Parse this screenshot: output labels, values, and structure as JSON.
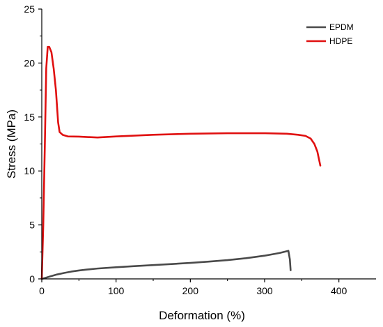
{
  "chart_data": {
    "type": "line",
    "xlabel": "Deformation (%)",
    "ylabel": "Stress (MPa)",
    "xlim": [
      0,
      450
    ],
    "ylim": [
      0,
      25
    ],
    "xticks": [
      0,
      100,
      200,
      300,
      400
    ],
    "yticks": [
      0,
      5,
      10,
      15,
      20,
      25
    ],
    "grid": false,
    "legend_position": "top-right",
    "series": [
      {
        "name": "EPDM",
        "color": "#4a4a4a",
        "points": [
          [
            0,
            0
          ],
          [
            5,
            0.1
          ],
          [
            10,
            0.2
          ],
          [
            20,
            0.4
          ],
          [
            30,
            0.55
          ],
          [
            40,
            0.68
          ],
          [
            50,
            0.78
          ],
          [
            60,
            0.86
          ],
          [
            75,
            0.96
          ],
          [
            100,
            1.08
          ],
          [
            125,
            1.18
          ],
          [
            150,
            1.28
          ],
          [
            175,
            1.38
          ],
          [
            200,
            1.48
          ],
          [
            225,
            1.6
          ],
          [
            250,
            1.74
          ],
          [
            275,
            1.92
          ],
          [
            300,
            2.15
          ],
          [
            320,
            2.4
          ],
          [
            332,
            2.6
          ],
          [
            334,
            1.8
          ],
          [
            335,
            0.8
          ]
        ]
      },
      {
        "name": "HDPE",
        "color": "#e01010",
        "points": [
          [
            0,
            0
          ],
          [
            2,
            5
          ],
          [
            4,
            12
          ],
          [
            6,
            19.5
          ],
          [
            8,
            21.5
          ],
          [
            10,
            21.5
          ],
          [
            13,
            21.0
          ],
          [
            16,
            19.5
          ],
          [
            19,
            17.5
          ],
          [
            22,
            14.5
          ],
          [
            24,
            13.6
          ],
          [
            28,
            13.35
          ],
          [
            35,
            13.2
          ],
          [
            50,
            13.18
          ],
          [
            75,
            13.1
          ],
          [
            100,
            13.2
          ],
          [
            150,
            13.35
          ],
          [
            200,
            13.45
          ],
          [
            250,
            13.5
          ],
          [
            300,
            13.5
          ],
          [
            330,
            13.45
          ],
          [
            345,
            13.35
          ],
          [
            355,
            13.25
          ],
          [
            362,
            13.0
          ],
          [
            367,
            12.5
          ],
          [
            371,
            11.8
          ],
          [
            375,
            10.5
          ]
        ]
      }
    ]
  }
}
